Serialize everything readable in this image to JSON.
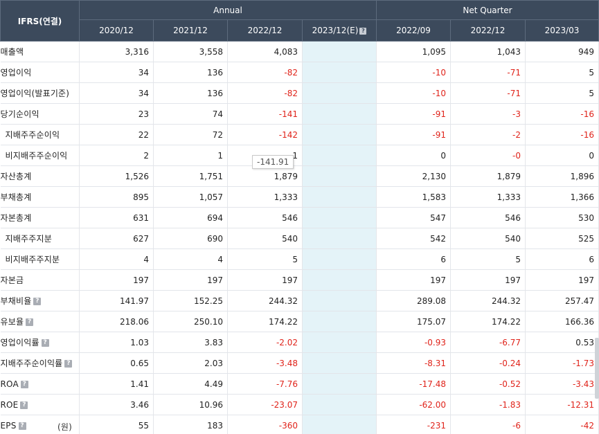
{
  "header": {
    "corner": "IFRS(연결)",
    "group_annual": "Annual",
    "group_quarter": "Net Quarter",
    "columns": [
      "2020/12",
      "2021/12",
      "2022/12",
      "2023/12(E)",
      "2022/09",
      "2022/12",
      "2023/03"
    ]
  },
  "rows": [
    {
      "label": "매출액",
      "indent": false,
      "help": false,
      "unit": "",
      "values": [
        "3,316",
        "3,558",
        "4,083",
        "",
        "1,095",
        "1,043",
        "949"
      ]
    },
    {
      "label": "영업이익",
      "indent": false,
      "help": false,
      "unit": "",
      "values": [
        "34",
        "136",
        "-82",
        "",
        "-10",
        "-71",
        "5"
      ]
    },
    {
      "label": "영업이익(발표기준)",
      "indent": false,
      "help": false,
      "unit": "",
      "values": [
        "34",
        "136",
        "-82",
        "",
        "-10",
        "-71",
        "5"
      ]
    },
    {
      "label": "당기순이익",
      "indent": false,
      "help": false,
      "unit": "",
      "values": [
        "23",
        "74",
        "-141",
        "",
        "-91",
        "-3",
        "-16"
      ]
    },
    {
      "label": "지배주주순이익",
      "indent": true,
      "help": false,
      "unit": "",
      "values": [
        "22",
        "72",
        "-142",
        "",
        "-91",
        "-2",
        "-16"
      ]
    },
    {
      "label": "비지배주주순이익",
      "indent": true,
      "help": false,
      "unit": "",
      "values": [
        "2",
        "1",
        "1",
        "",
        "0",
        "-0",
        "0"
      ]
    },
    {
      "label": "자산총계",
      "indent": false,
      "help": false,
      "unit": "",
      "values": [
        "1,526",
        "1,751",
        "1,879",
        "",
        "2,130",
        "1,879",
        "1,896"
      ]
    },
    {
      "label": "부채총계",
      "indent": false,
      "help": false,
      "unit": "",
      "values": [
        "895",
        "1,057",
        "1,333",
        "",
        "1,583",
        "1,333",
        "1,366"
      ]
    },
    {
      "label": "자본총계",
      "indent": false,
      "help": false,
      "unit": "",
      "values": [
        "631",
        "694",
        "546",
        "",
        "547",
        "546",
        "530"
      ]
    },
    {
      "label": "지배주주지분",
      "indent": true,
      "help": false,
      "unit": "",
      "values": [
        "627",
        "690",
        "540",
        "",
        "542",
        "540",
        "525"
      ]
    },
    {
      "label": "비지배주주지분",
      "indent": true,
      "help": false,
      "unit": "",
      "values": [
        "4",
        "4",
        "5",
        "",
        "6",
        "5",
        "6"
      ]
    },
    {
      "label": "자본금",
      "indent": false,
      "help": false,
      "unit": "",
      "values": [
        "197",
        "197",
        "197",
        "",
        "197",
        "197",
        "197"
      ]
    },
    {
      "label": "부채비율",
      "indent": false,
      "help": true,
      "unit": "",
      "values": [
        "141.97",
        "152.25",
        "244.32",
        "",
        "289.08",
        "244.32",
        "257.47"
      ]
    },
    {
      "label": "유보율",
      "indent": false,
      "help": true,
      "unit": "",
      "values": [
        "218.06",
        "250.10",
        "174.22",
        "",
        "175.07",
        "174.22",
        "166.36"
      ]
    },
    {
      "label": "영업이익률",
      "indent": false,
      "help": true,
      "unit": "",
      "values": [
        "1.03",
        "3.83",
        "-2.02",
        "",
        "-0.93",
        "-6.77",
        "0.53"
      ]
    },
    {
      "label": "지배주주순이익률",
      "indent": false,
      "help": true,
      "unit": "",
      "values": [
        "0.65",
        "2.03",
        "-3.48",
        "",
        "-8.31",
        "-0.24",
        "-1.73"
      ]
    },
    {
      "label": "ROA",
      "indent": false,
      "help": true,
      "unit": "",
      "values": [
        "1.41",
        "4.49",
        "-7.76",
        "",
        "-17.48",
        "-0.52",
        "-3.43"
      ]
    },
    {
      "label": "ROE",
      "indent": false,
      "help": true,
      "unit": "",
      "values": [
        "3.46",
        "10.96",
        "-23.07",
        "",
        "-62.00",
        "-1.83",
        "-12.31"
      ]
    },
    {
      "label": "EPS",
      "indent": false,
      "help": true,
      "unit": "(원)",
      "values": [
        "55",
        "183",
        "-360",
        "",
        "-231",
        "-6",
        "-42"
      ]
    }
  ],
  "help_icon": "?",
  "tooltip": "-141.91",
  "colors": {
    "header_bg": "#3c4a5c",
    "negative": "#e0231a",
    "estimate_bg": "#e4f3f8"
  }
}
